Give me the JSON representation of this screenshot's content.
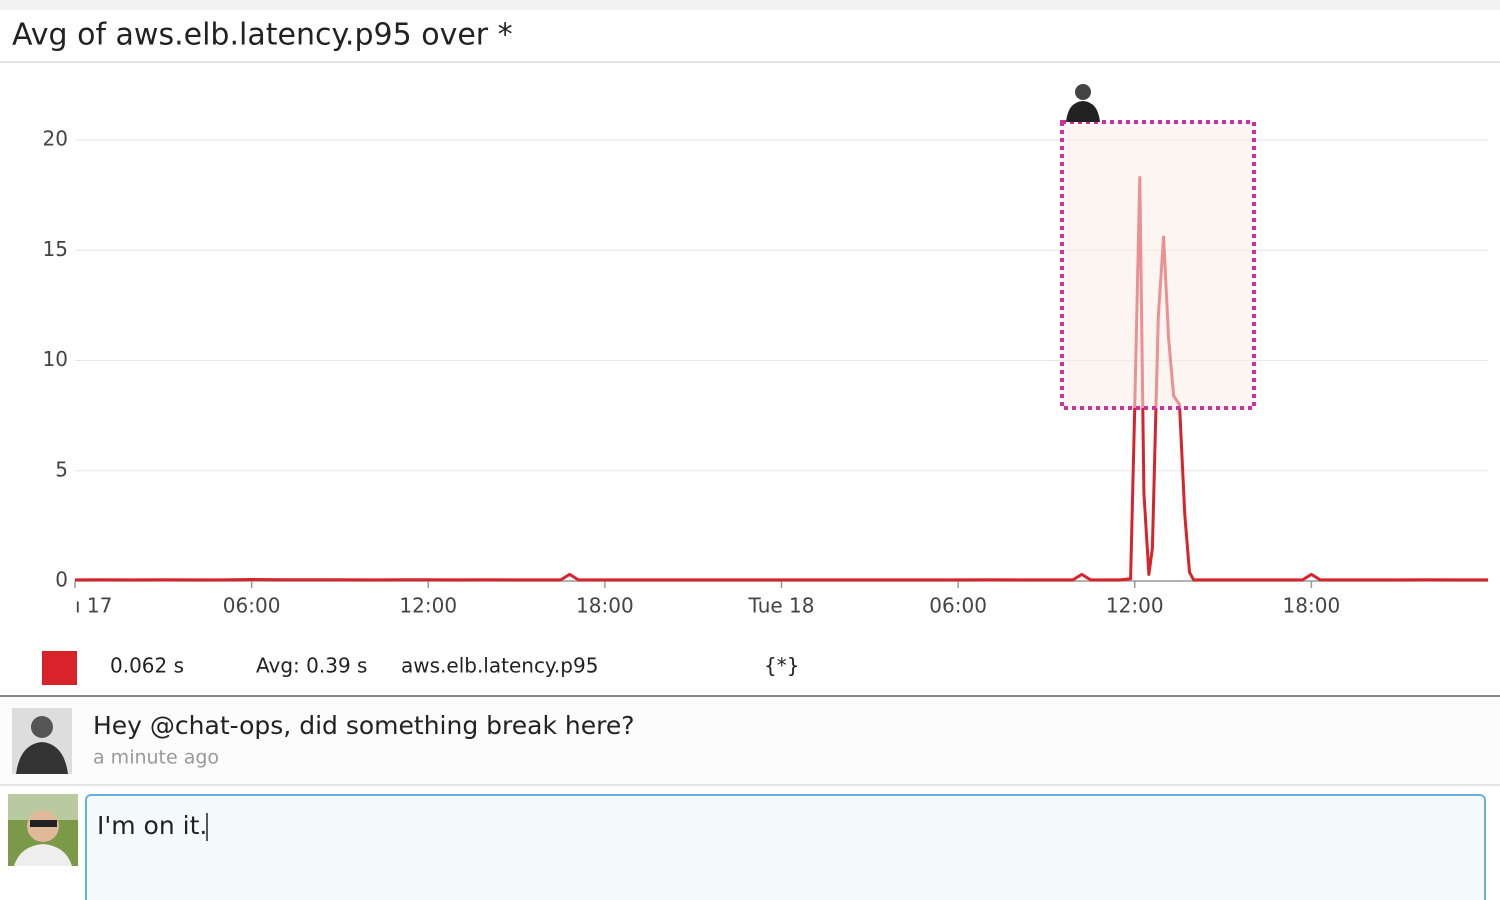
{
  "chart_data": {
    "type": "line",
    "title": "Avg of aws.elb.latency.p95 over *",
    "xlim": [
      0,
      48
    ],
    "ylim": [
      0,
      23
    ],
    "xticks": [
      {
        "value": 0,
        "label": "ı 17"
      },
      {
        "value": 6,
        "label": "06:00"
      },
      {
        "value": 12,
        "label": "12:00"
      },
      {
        "value": 18,
        "label": "18:00"
      },
      {
        "value": 24,
        "label": "Tue 18"
      },
      {
        "value": 30,
        "label": "06:00"
      },
      {
        "value": 36,
        "label": "12:00"
      },
      {
        "value": 42,
        "label": "18:00"
      }
    ],
    "yticks": [
      0,
      5,
      10,
      15,
      20
    ],
    "grid": true,
    "x": [
      0,
      1,
      2,
      3,
      4,
      5,
      6,
      7,
      8,
      9,
      10,
      11,
      12,
      13,
      14,
      15,
      16,
      16.5,
      16.8,
      17.1,
      18,
      19,
      20,
      21,
      22,
      23,
      24,
      25,
      26,
      27,
      28,
      29,
      30,
      31,
      32,
      33,
      33.9,
      34.2,
      34.5,
      35,
      35.5,
      35.86,
      36.0,
      36.17,
      36.31,
      36.48,
      36.6,
      36.8,
      36.98,
      37.15,
      37.32,
      37.52,
      37.7,
      37.86,
      38.0,
      39,
      40,
      41,
      41.7,
      42.0,
      42.3,
      43,
      44,
      45,
      46,
      47,
      48
    ],
    "series": [
      {
        "name": "aws.elb.latency.p95",
        "color": "#d8232a",
        "values": [
          0.05,
          0.06,
          0.05,
          0.06,
          0.05,
          0.05,
          0.07,
          0.06,
          0.06,
          0.06,
          0.05,
          0.06,
          0.06,
          0.05,
          0.06,
          0.05,
          0.05,
          0.05,
          0.3,
          0.05,
          0.05,
          0.05,
          0.05,
          0.05,
          0.05,
          0.05,
          0.05,
          0.05,
          0.05,
          0.05,
          0.05,
          0.05,
          0.05,
          0.06,
          0.05,
          0.05,
          0.05,
          0.3,
          0.05,
          0.05,
          0.05,
          0.1,
          8,
          18.3,
          4,
          0.3,
          1.5,
          12,
          15.6,
          11,
          8.4,
          8,
          3,
          0.4,
          0.05,
          0.05,
          0.05,
          0.05,
          0.05,
          0.3,
          0.05,
          0.05,
          0.05,
          0.05,
          0.06,
          0.05,
          0.05
        ]
      }
    ],
    "legend": {
      "current": "0.062 s",
      "average": "Avg: 0.39 s",
      "scope": "{*}"
    }
  },
  "comments": [
    {
      "text": "Hey @chat-ops, did something break here?",
      "time": "a minute ago"
    }
  ],
  "reply": {
    "text": "I'm on it."
  }
}
